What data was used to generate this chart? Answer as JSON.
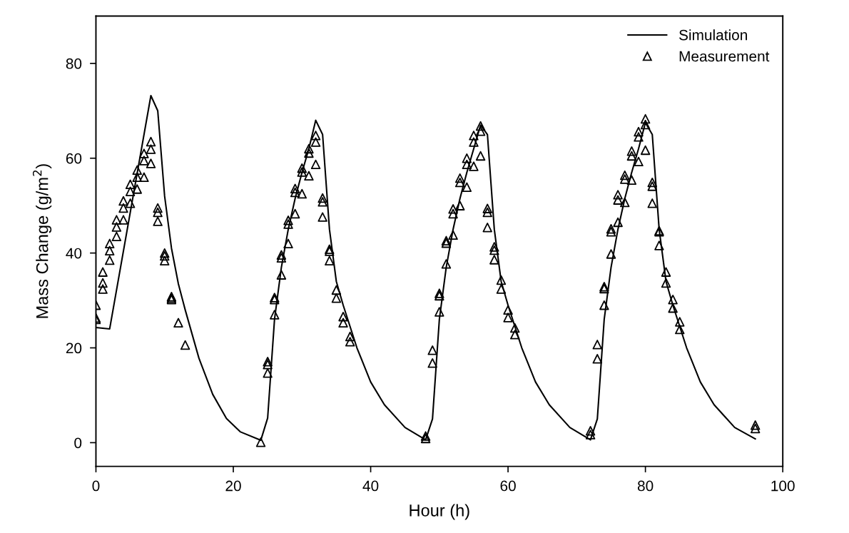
{
  "chart_data": {
    "type": "line",
    "xlabel": "Hour (h)",
    "ylabel": "Mass Change (g/m$^{2}$)",
    "xlim": [
      0,
      100
    ],
    "ylim": [
      -5,
      90
    ],
    "xticks": [
      0,
      20,
      40,
      60,
      80,
      100
    ],
    "yticks": [
      0,
      20,
      40,
      60,
      80
    ],
    "grid": false,
    "legend": "top right",
    "series": [
      {
        "name": "Simulation",
        "color": "#000000",
        "marker": "none",
        "line_style": "solid",
        "x": [
          0,
          2,
          8,
          9,
          10,
          11,
          12,
          13,
          15,
          17,
          19,
          21,
          24,
          25,
          26,
          27,
          28,
          29,
          30,
          31,
          32,
          33,
          34,
          35,
          36,
          38,
          40,
          42,
          45,
          48,
          49,
          50,
          51,
          52,
          53,
          54,
          55,
          56,
          57,
          58,
          59,
          60,
          62,
          64,
          66,
          69,
          72,
          73,
          74,
          75,
          76,
          77,
          78,
          79,
          80,
          81,
          82,
          83,
          84,
          86,
          88,
          90,
          93,
          96
        ],
        "values": [
          24.3,
          24,
          73.2,
          70,
          52,
          41,
          33.5,
          28,
          17.8,
          10.2,
          5.1,
          2.3,
          0.5,
          5.2,
          26,
          37,
          45,
          51.5,
          57,
          62,
          68,
          65,
          45,
          34,
          29,
          20,
          12.8,
          8,
          3.2,
          0.6,
          5,
          26,
          37,
          45,
          51.5,
          57,
          62,
          67,
          65,
          45,
          34,
          29,
          20,
          12.8,
          8,
          3.2,
          0.6,
          5,
          26,
          37,
          45,
          51.5,
          57,
          62,
          67.5,
          65,
          45,
          34,
          29,
          20,
          12.8,
          8,
          3.2,
          0.8
        ]
      },
      {
        "name": "Measurement",
        "type": "scatter",
        "color": "#000000",
        "marker": "triangle",
        "x": [
          0,
          0,
          0,
          1,
          1,
          1,
          2,
          2,
          2,
          3,
          3,
          3,
          4,
          4,
          4,
          5,
          5,
          5,
          6,
          6,
          6,
          7,
          7,
          7,
          8,
          8,
          8,
          9,
          9,
          9,
          10,
          10,
          10,
          11,
          11,
          11,
          12,
          13,
          24,
          25,
          25,
          25,
          26,
          26,
          26,
          27,
          27,
          27,
          28,
          28,
          28,
          29,
          29,
          29,
          30,
          30,
          30,
          31,
          31,
          31,
          32,
          32,
          32,
          33,
          33,
          33,
          34,
          34,
          34,
          35,
          35,
          36,
          36,
          37,
          37,
          48,
          48,
          49,
          49,
          50,
          50,
          50,
          51,
          51,
          51,
          52,
          52,
          52,
          53,
          53,
          53,
          54,
          54,
          54,
          55,
          55,
          55,
          56,
          56,
          56,
          57,
          57,
          57,
          58,
          58,
          58,
          59,
          59,
          60,
          60,
          61,
          61,
          72,
          72,
          73,
          73,
          74,
          74,
          74,
          75,
          75,
          75,
          76,
          76,
          76,
          77,
          77,
          77,
          78,
          78,
          78,
          79,
          79,
          79,
          80,
          80,
          80,
          81,
          81,
          81,
          82,
          82,
          82,
          83,
          83,
          84,
          84,
          85,
          85,
          96,
          96
        ],
        "values": [
          29,
          26.3,
          26,
          36,
          33.7,
          32.4,
          42,
          40.5,
          38.5,
          47,
          45.5,
          43.5,
          51,
          49.5,
          47,
          54.5,
          53,
          50.5,
          57.5,
          56,
          53.5,
          61,
          59.5,
          56,
          63.5,
          61.9,
          58.9,
          49.5,
          48.6,
          46.7,
          40,
          39.4,
          38.4,
          30.8,
          30.5,
          30.2,
          25.3,
          20.6,
          0.1,
          17.1,
          16.5,
          14.7,
          30.6,
          30.2,
          27,
          39.6,
          39,
          35.4,
          46.9,
          46.1,
          42,
          53.6,
          52.8,
          48.3,
          57.9,
          57.1,
          52.5,
          62,
          61.1,
          56.3,
          64.8,
          63.4,
          58.7,
          51.6,
          50.8,
          47.6,
          40.8,
          40.4,
          38.4,
          32.2,
          30.5,
          26.6,
          25.3,
          22.4,
          21.3,
          1.4,
          0.9,
          19.5,
          16.8,
          31.5,
          31,
          27.6,
          42.6,
          42.1,
          37.7,
          49.3,
          48.3,
          43.8,
          55.8,
          54.9,
          50,
          60,
          58.7,
          53.9,
          64.8,
          63.4,
          58.3,
          66.8,
          65.7,
          60.5,
          49.4,
          48.6,
          45.4,
          41.3,
          40.6,
          38.6,
          34.3,
          32.4,
          28,
          26.4,
          24.2,
          22.8,
          2.5,
          1.7,
          20.7,
          17.7,
          32.9,
          32.5,
          29,
          45.1,
          44.5,
          39.8,
          52.3,
          51.2,
          46.5,
          56.4,
          55.6,
          50.7,
          61.5,
          60.5,
          55.4,
          65.6,
          64.5,
          59.3,
          68.3,
          67.1,
          61.7,
          54.9,
          54.1,
          50.5,
          44.7,
          44.5,
          41.6,
          36,
          33.7,
          30.2,
          28.4,
          25.5,
          23.9,
          3.7,
          3
        ]
      }
    ]
  }
}
